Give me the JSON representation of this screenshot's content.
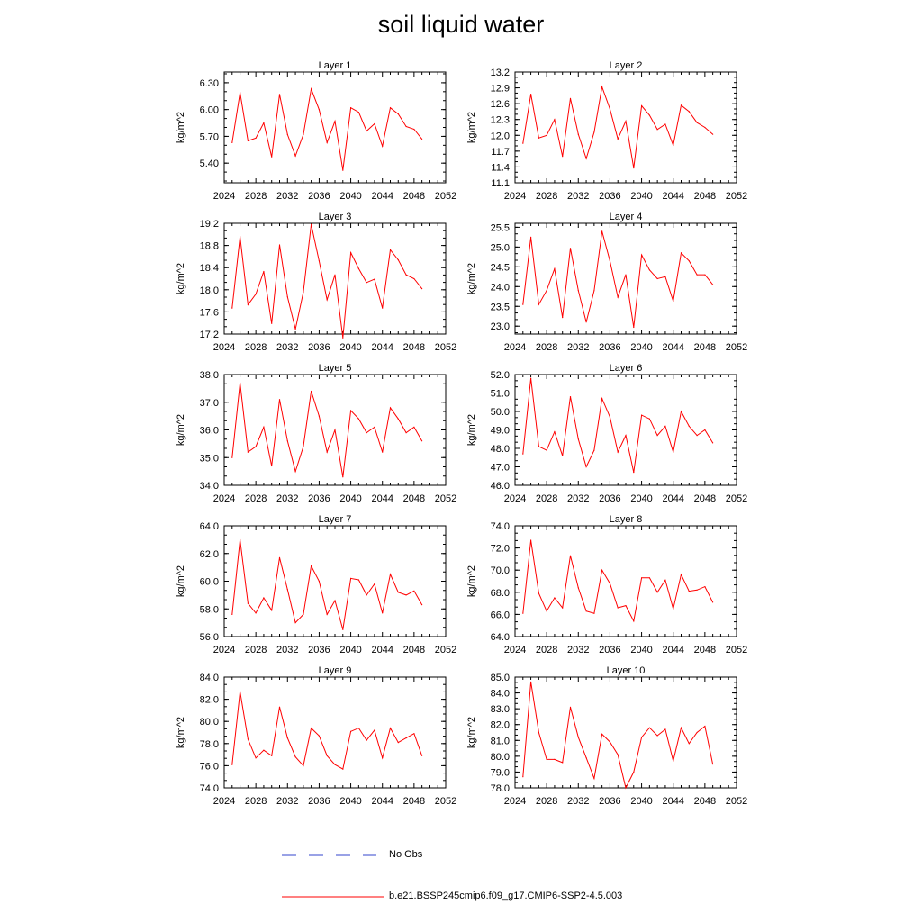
{
  "figure": {
    "title": "soil liquid water",
    "legend": {
      "obs_label": "No Obs",
      "model_label": "b.e21.BSSP245cmip6.f09_g17.CMIP6-SSP2-4.5.003",
      "obs_color": "#3344cc",
      "model_color": "#ff0000"
    }
  },
  "chart_data": [
    {
      "type": "line",
      "title": "Layer 1",
      "ylabel": "kg/m^2",
      "xlim": [
        2024,
        2052
      ],
      "xticks": [
        2024,
        2028,
        2032,
        2036,
        2040,
        2044,
        2048,
        2052
      ],
      "ylim": [
        5.18,
        6.42
      ],
      "yticks": [
        "5.40",
        "5.70",
        "6.00",
        "6.30"
      ],
      "series": [
        {
          "color": "#ff0000",
          "x": [
            2025,
            2026,
            2027,
            2028,
            2029,
            2030,
            2031,
            2032,
            2033,
            2034,
            2035,
            2036,
            2037,
            2038,
            2039,
            2040,
            2041,
            2042,
            2043,
            2044,
            2045,
            2046,
            2047,
            2048,
            2049
          ],
          "values": [
            5.63,
            6.19,
            5.65,
            5.68,
            5.85,
            5.47,
            6.17,
            5.72,
            5.48,
            5.72,
            6.23,
            6.0,
            5.63,
            5.87,
            5.32,
            6.02,
            5.97,
            5.76,
            5.84,
            5.59,
            6.02,
            5.95,
            5.81,
            5.78,
            5.67
          ]
        }
      ]
    },
    {
      "type": "line",
      "title": "Layer 2",
      "ylabel": "kg/m^2",
      "xlim": [
        2024,
        2052
      ],
      "xticks": [
        2024,
        2028,
        2032,
        2036,
        2040,
        2044,
        2048,
        2052
      ],
      "ylim": [
        11.1,
        13.2
      ],
      "yticks": [
        "11.1",
        "11.4",
        "11.7",
        "12.0",
        "12.3",
        "12.6",
        "12.9",
        "13.2"
      ],
      "series": [
        {
          "color": "#ff0000",
          "x": [
            2025,
            2026,
            2027,
            2028,
            2029,
            2030,
            2031,
            2032,
            2033,
            2034,
            2035,
            2036,
            2037,
            2038,
            2039,
            2040,
            2041,
            2042,
            2043,
            2044,
            2045,
            2046,
            2047,
            2048,
            2049
          ],
          "values": [
            11.85,
            12.78,
            11.95,
            12.0,
            12.3,
            11.6,
            12.7,
            12.02,
            11.56,
            12.06,
            12.92,
            12.5,
            11.93,
            12.27,
            11.38,
            12.56,
            12.38,
            12.11,
            12.21,
            11.81,
            12.57,
            12.45,
            12.24,
            12.15,
            12.02
          ]
        }
      ]
    },
    {
      "type": "line",
      "title": "Layer 3",
      "ylabel": "kg/m^2",
      "xlim": [
        2024,
        2052
      ],
      "xticks": [
        2024,
        2028,
        2032,
        2036,
        2040,
        2044,
        2048,
        2052
      ],
      "ylim": [
        17.2,
        19.2
      ],
      "yticks": [
        "17.2",
        "17.6",
        "18.0",
        "18.4",
        "18.8",
        "19.2"
      ],
      "series": [
        {
          "color": "#ff0000",
          "x": [
            2025,
            2026,
            2027,
            2028,
            2029,
            2030,
            2031,
            2032,
            2033,
            2034,
            2035,
            2036,
            2037,
            2038,
            2039,
            2040,
            2041,
            2042,
            2043,
            2044,
            2045,
            2046,
            2047,
            2048,
            2049
          ],
          "values": [
            17.67,
            18.96,
            17.73,
            17.92,
            18.33,
            17.39,
            18.81,
            17.87,
            17.29,
            17.96,
            19.18,
            18.52,
            17.82,
            18.27,
            17.13,
            18.67,
            18.38,
            18.13,
            18.19,
            17.67,
            18.72,
            18.54,
            18.27,
            18.2,
            18.02
          ]
        }
      ]
    },
    {
      "type": "line",
      "title": "Layer 4",
      "ylabel": "kg/m^2",
      "xlim": [
        2024,
        2052
      ],
      "xticks": [
        2024,
        2028,
        2032,
        2036,
        2040,
        2044,
        2048,
        2052
      ],
      "ylim": [
        22.8,
        25.6
      ],
      "yticks": [
        "23.0",
        "23.5",
        "24.0",
        "24.5",
        "25.0",
        "25.5"
      ],
      "series": [
        {
          "color": "#ff0000",
          "x": [
            2025,
            2026,
            2027,
            2028,
            2029,
            2030,
            2031,
            2032,
            2033,
            2034,
            2035,
            2036,
            2037,
            2038,
            2039,
            2040,
            2041,
            2042,
            2043,
            2044,
            2045,
            2046,
            2047,
            2048,
            2049
          ],
          "values": [
            23.55,
            25.25,
            23.55,
            23.9,
            24.45,
            23.22,
            24.97,
            23.9,
            23.1,
            23.9,
            25.4,
            24.65,
            23.73,
            24.3,
            22.97,
            24.8,
            24.42,
            24.2,
            24.25,
            23.63,
            24.85,
            24.65,
            24.3,
            24.3,
            24.05
          ]
        }
      ]
    },
    {
      "type": "line",
      "title": "Layer 5",
      "ylabel": "kg/m^2",
      "xlim": [
        2024,
        2052
      ],
      "xticks": [
        2024,
        2028,
        2032,
        2036,
        2040,
        2044,
        2048,
        2052
      ],
      "ylim": [
        34.0,
        38.0
      ],
      "yticks": [
        "34.0",
        "35.0",
        "36.0",
        "37.0",
        "38.0"
      ],
      "series": [
        {
          "color": "#ff0000",
          "x": [
            2025,
            2026,
            2027,
            2028,
            2029,
            2030,
            2031,
            2032,
            2033,
            2034,
            2035,
            2036,
            2037,
            2038,
            2039,
            2040,
            2041,
            2042,
            2043,
            2044,
            2045,
            2046,
            2047,
            2048,
            2049
          ],
          "values": [
            35.0,
            37.7,
            35.2,
            35.4,
            36.1,
            34.7,
            37.1,
            35.6,
            34.5,
            35.4,
            37.4,
            36.5,
            35.2,
            36.0,
            34.3,
            36.7,
            36.4,
            35.9,
            36.1,
            35.2,
            36.8,
            36.4,
            35.9,
            36.1,
            35.6
          ]
        }
      ]
    },
    {
      "type": "line",
      "title": "Layer 6",
      "ylabel": "kg/m^2",
      "xlim": [
        2024,
        2052
      ],
      "xticks": [
        2024,
        2028,
        2032,
        2036,
        2040,
        2044,
        2048,
        2052
      ],
      "ylim": [
        46.0,
        52.0
      ],
      "yticks": [
        "46.0",
        "47.0",
        "48.0",
        "49.0",
        "50.0",
        "51.0",
        "52.0"
      ],
      "series": [
        {
          "color": "#ff0000",
          "x": [
            2025,
            2026,
            2027,
            2028,
            2029,
            2030,
            2031,
            2032,
            2033,
            2034,
            2035,
            2036,
            2037,
            2038,
            2039,
            2040,
            2041,
            2042,
            2043,
            2044,
            2045,
            2046,
            2047,
            2048,
            2049
          ],
          "values": [
            47.7,
            51.8,
            48.1,
            47.9,
            48.9,
            47.6,
            50.8,
            48.5,
            47.0,
            47.9,
            50.7,
            49.7,
            47.8,
            48.7,
            46.7,
            49.8,
            49.6,
            48.7,
            49.2,
            47.8,
            50.0,
            49.2,
            48.7,
            49.0,
            48.3
          ]
        }
      ]
    },
    {
      "type": "line",
      "title": "Layer 7",
      "ylabel": "kg/m^2",
      "xlim": [
        2024,
        2052
      ],
      "xticks": [
        2024,
        2028,
        2032,
        2036,
        2040,
        2044,
        2048,
        2052
      ],
      "ylim": [
        56.0,
        64.0
      ],
      "yticks": [
        "56.0",
        "58.0",
        "60.0",
        "62.0",
        "64.0"
      ],
      "series": [
        {
          "color": "#ff0000",
          "x": [
            2025,
            2026,
            2027,
            2028,
            2029,
            2030,
            2031,
            2032,
            2033,
            2034,
            2035,
            2036,
            2037,
            2038,
            2039,
            2040,
            2041,
            2042,
            2043,
            2044,
            2045,
            2046,
            2047,
            2048,
            2049
          ],
          "values": [
            57.6,
            63.0,
            58.4,
            57.7,
            58.8,
            57.9,
            61.7,
            59.4,
            57.0,
            57.6,
            61.1,
            60.0,
            57.6,
            58.6,
            56.5,
            60.2,
            60.1,
            59.0,
            59.8,
            57.7,
            60.5,
            59.2,
            59.0,
            59.3,
            58.3
          ]
        }
      ]
    },
    {
      "type": "line",
      "title": "Layer 8",
      "ylabel": "kg/m^2",
      "xlim": [
        2024,
        2052
      ],
      "xticks": [
        2024,
        2028,
        2032,
        2036,
        2040,
        2044,
        2048,
        2052
      ],
      "ylim": [
        64.0,
        74.0
      ],
      "yticks": [
        "64.0",
        "66.0",
        "68.0",
        "70.0",
        "72.0",
        "74.0"
      ],
      "series": [
        {
          "color": "#ff0000",
          "x": [
            2025,
            2026,
            2027,
            2028,
            2029,
            2030,
            2031,
            2032,
            2033,
            2034,
            2035,
            2036,
            2037,
            2038,
            2039,
            2040,
            2041,
            2042,
            2043,
            2044,
            2045,
            2046,
            2047,
            2048,
            2049
          ],
          "values": [
            66.1,
            72.7,
            67.9,
            66.3,
            67.5,
            66.6,
            71.3,
            68.4,
            66.3,
            66.1,
            70.0,
            68.8,
            66.6,
            66.8,
            65.4,
            69.3,
            69.3,
            68.0,
            69.1,
            66.5,
            69.6,
            68.1,
            68.2,
            68.5,
            67.1
          ]
        }
      ]
    },
    {
      "type": "line",
      "title": "Layer 9",
      "ylabel": "kg/m^2",
      "xlim": [
        2024,
        2052
      ],
      "xticks": [
        2024,
        2028,
        2032,
        2036,
        2040,
        2044,
        2048,
        2052
      ],
      "ylim": [
        74.0,
        84.0
      ],
      "yticks": [
        "74.0",
        "76.0",
        "78.0",
        "80.0",
        "82.0",
        "84.0"
      ],
      "series": [
        {
          "color": "#ff0000",
          "x": [
            2025,
            2026,
            2027,
            2028,
            2029,
            2030,
            2031,
            2032,
            2033,
            2034,
            2035,
            2036,
            2037,
            2038,
            2039,
            2040,
            2041,
            2042,
            2043,
            2044,
            2045,
            2046,
            2047,
            2048,
            2049
          ],
          "values": [
            76.1,
            82.7,
            78.4,
            76.7,
            77.4,
            76.9,
            81.3,
            78.5,
            76.8,
            76.0,
            79.4,
            78.7,
            76.9,
            76.1,
            75.7,
            79.1,
            79.4,
            78.3,
            79.2,
            76.7,
            79.4,
            78.1,
            78.5,
            78.9,
            76.9
          ]
        }
      ]
    },
    {
      "type": "line",
      "title": "Layer 10",
      "ylabel": "kg/m^2",
      "xlim": [
        2024,
        2052
      ],
      "xticks": [
        2024,
        2028,
        2032,
        2036,
        2040,
        2044,
        2048,
        2052
      ],
      "ylim": [
        78.0,
        85.0
      ],
      "yticks": [
        "78.0",
        "79.0",
        "80.0",
        "81.0",
        "82.0",
        "83.0",
        "84.0",
        "85.0"
      ],
      "series": [
        {
          "color": "#ff0000",
          "x": [
            2025,
            2026,
            2027,
            2028,
            2029,
            2030,
            2031,
            2032,
            2033,
            2034,
            2035,
            2036,
            2037,
            2038,
            2039,
            2040,
            2041,
            2042,
            2043,
            2044,
            2045,
            2046,
            2047,
            2048,
            2049
          ],
          "values": [
            78.7,
            84.7,
            81.5,
            79.8,
            79.8,
            79.6,
            83.1,
            81.2,
            79.9,
            78.6,
            81.4,
            80.9,
            80.1,
            78.0,
            79.0,
            81.2,
            81.8,
            81.3,
            81.7,
            79.7,
            81.8,
            80.8,
            81.5,
            81.9,
            79.5
          ]
        }
      ]
    }
  ]
}
